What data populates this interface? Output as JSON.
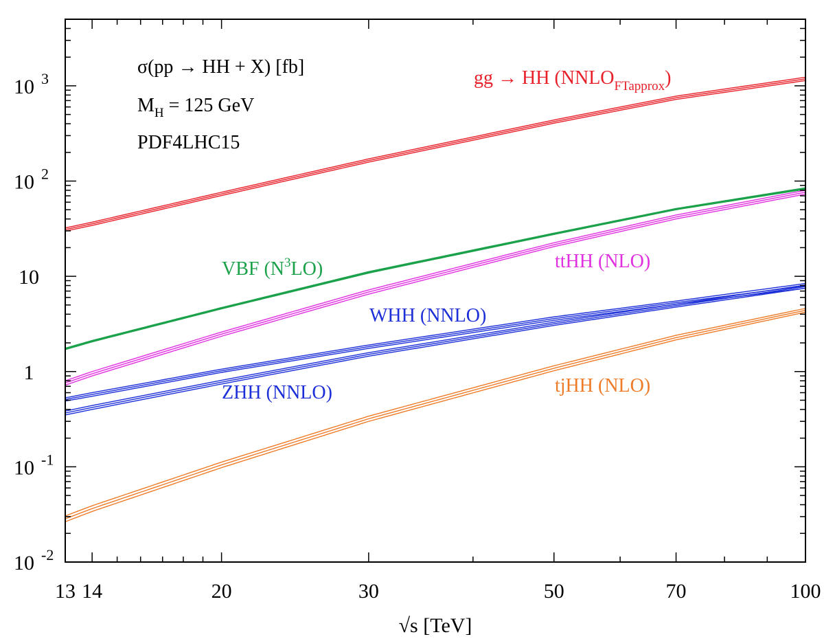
{
  "chart_data": {
    "type": "line",
    "title": "",
    "xlabel": "√s [TeV]",
    "ylabel": "",
    "xscale": "log",
    "yscale": "log",
    "xlim": [
      13,
      100
    ],
    "ylim": [
      0.01,
      5000
    ],
    "x_ticks": [
      {
        "value": 13,
        "label": "13"
      },
      {
        "value": 14,
        "label": "14"
      },
      {
        "value": 20,
        "label": "20"
      },
      {
        "value": 30,
        "label": "30"
      },
      {
        "value": 50,
        "label": "50"
      },
      {
        "value": 70,
        "label": "70"
      },
      {
        "value": 100,
        "label": "100"
      }
    ],
    "y_ticks": [
      {
        "value": 0.01,
        "base": "10",
        "exp": "-2"
      },
      {
        "value": 0.1,
        "base": "10",
        "exp": "-1"
      },
      {
        "value": 1,
        "base": "1",
        "exp": ""
      },
      {
        "value": 10,
        "base": "10",
        "exp": ""
      },
      {
        "value": 100,
        "base": "10",
        "exp": "2"
      },
      {
        "value": 1000,
        "base": "10",
        "exp": "3"
      }
    ],
    "annotations": {
      "process": "σ(pp → HH + X) [fb]",
      "mass_main": "M",
      "mass_sub": "H",
      "mass_rest": " = 125 GeV",
      "pdf": "PDF4LHC15"
    },
    "grid": false,
    "series": [
      {
        "name": "gg → HH (NNLO",
        "label_sub": "FTapprox",
        "label_tail": ")",
        "color": "#e8202a",
        "x": [
          13,
          14,
          20,
          30,
          50,
          70,
          100
        ],
        "lower": [
          29.8,
          34.2,
          70.5,
          158,
          405,
          720,
          1135
        ],
        "upper": [
          32.2,
          37.0,
          76.3,
          171,
          438,
          780,
          1230
        ]
      },
      {
        "name": "VBF (N",
        "label_sup": "3",
        "label_tail": "LO)",
        "color": "#1aa14a",
        "x": [
          13,
          14,
          20,
          30,
          50,
          70,
          100
        ],
        "lower": [
          1.7,
          2.05,
          4.55,
          10.8,
          27.5,
          50,
          82
        ],
        "upper": [
          1.76,
          2.12,
          4.7,
          11.2,
          28.4,
          51.5,
          85
        ]
      },
      {
        "name": "ttHH (NLO)",
        "color": "#e030e0",
        "x": [
          13,
          14,
          20,
          30,
          50,
          70,
          100
        ],
        "lower": [
          0.72,
          0.9,
          2.35,
          6.5,
          20.5,
          40,
          73
        ],
        "upper": [
          0.8,
          1.0,
          2.6,
          7.2,
          22.5,
          44,
          80
        ]
      },
      {
        "name": "WHH (NNLO)",
        "color": "#1c2fd8",
        "x": [
          13,
          14,
          20,
          30,
          50,
          70,
          100
        ],
        "lower": [
          0.49,
          0.55,
          0.98,
          1.75,
          3.45,
          5.1,
          7.5
        ],
        "upper": [
          0.53,
          0.6,
          1.06,
          1.9,
          3.75,
          5.5,
          8.4
        ]
      },
      {
        "name": "ZHH (NNLO)",
        "color": "#1c2fd8",
        "x": [
          13,
          14,
          20,
          30,
          50,
          70,
          100
        ],
        "lower": [
          0.35,
          0.4,
          0.74,
          1.45,
          3.05,
          4.75,
          7.5
        ],
        "upper": [
          0.385,
          0.44,
          0.81,
          1.58,
          3.3,
          5.1,
          8.1
        ]
      },
      {
        "name": "tjHH (NLO)",
        "color": "#ee7b28",
        "x": [
          13,
          14,
          20,
          30,
          50,
          70,
          100
        ],
        "lower": [
          0.0265,
          0.034,
          0.098,
          0.3,
          1.02,
          2.15,
          4.2
        ],
        "upper": [
          0.0305,
          0.039,
          0.112,
          0.34,
          1.15,
          2.4,
          4.6
        ]
      }
    ]
  }
}
